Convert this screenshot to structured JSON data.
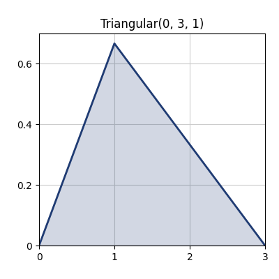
{
  "chart_data": {
    "type": "line",
    "title": "Triangular(0, 3, 1)",
    "x": [
      0,
      1,
      3
    ],
    "values": [
      0,
      0.667,
      0
    ],
    "color": "#1f3b73",
    "xlim": [
      0,
      3
    ],
    "xticks": [
      0,
      1,
      2,
      3
    ],
    "ylim": [
      0,
      0.7
    ],
    "yticks": [
      0,
      0.2,
      0.4,
      0.6
    ],
    "grid": true
  }
}
